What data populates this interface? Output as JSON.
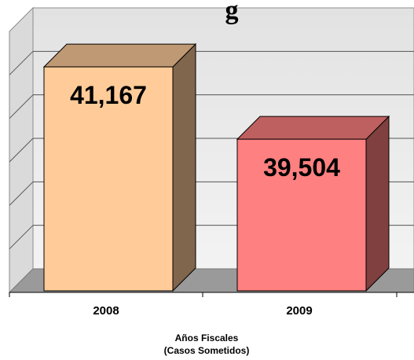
{
  "chart_data": {
    "type": "bar",
    "title": "g",
    "categories": [
      "2008",
      "2009"
    ],
    "values": [
      41167,
      39504
    ],
    "data_labels": [
      "41,167",
      "39,504"
    ],
    "bar_colors": [
      "#FFCC99",
      "#FF8080"
    ],
    "xlabel_lines": [
      "Años Fiscales",
      "(Casos Sometidos)"
    ],
    "ylabel": "",
    "ylim": [
      36000,
      42000
    ],
    "grid": true,
    "legend": "none",
    "style": "3d-column"
  }
}
